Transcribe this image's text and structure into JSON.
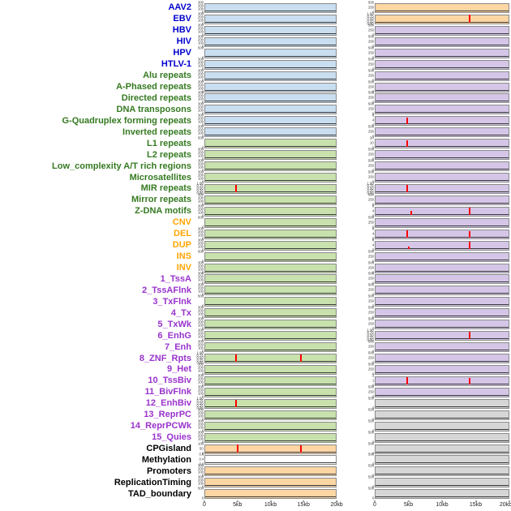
{
  "palette": {
    "label_colors": {
      "virus": "#0000cd",
      "repeat": "#357a21",
      "sv": "#ffa500",
      "chromhmm": "#9933cc",
      "feature": "#000000"
    },
    "panel_colors": {
      "blue": "#c9def0",
      "green": "#c8e1ad",
      "purple": "#d5c6e8",
      "orange": "#fdd6a3",
      "gray": "#d6d6d6",
      "white": "#ffffff"
    },
    "spike_color": "#ff0000",
    "baseline_color": "#3a3a3a"
  },
  "tick_sets": {
    "c4": [
      "300",
      "200",
      "100",
      "0"
    ],
    "c3": [
      "500",
      "250",
      "0"
    ],
    "p5": [
      "1.00",
      "0.75",
      "0.50",
      "0.25",
      "0.00"
    ],
    "s3": [
      "8",
      "4",
      "0"
    ],
    "m3": [
      "0.8",
      "0.4",
      "0.0"
    ],
    "h2": [
      "500",
      "0"
    ],
    "cg": [
      "100",
      "50",
      "0"
    ],
    "t3": [
      "2",
      "1",
      "0"
    ],
    "z3": [
      "20",
      "10",
      "0"
    ]
  },
  "chart_data": {
    "type": "line",
    "subtype": "genomic-feature-tracks",
    "description": "44 genomic feature density tracks over two 20kb regions (left and right panel columns); red vertical spikes mark feature peaks, dark line is the zero baseline",
    "x_ticks": [
      "0",
      "5kb",
      "10kb",
      "15kb",
      "20kb"
    ],
    "x_range_kb": [
      0,
      20
    ],
    "columns": [
      "left-region",
      "right-region"
    ],
    "rows": [
      {
        "label": "AAV2",
        "group": "virus",
        "left": {
          "bg": "blue",
          "yt": "c4",
          "spikes": []
        },
        "right": {
          "bg": "orange",
          "yt": "c3",
          "spikes": []
        }
      },
      {
        "label": "EBV",
        "group": "virus",
        "left": {
          "bg": "blue",
          "yt": "c4",
          "spikes": []
        },
        "right": {
          "bg": "orange",
          "yt": "p5",
          "spikes": [
            [
              0.71,
              1.0
            ]
          ]
        }
      },
      {
        "label": "HBV",
        "group": "virus",
        "left": {
          "bg": "blue",
          "yt": "c4",
          "spikes": []
        },
        "right": {
          "bg": "purple",
          "yt": "c3",
          "spikes": []
        }
      },
      {
        "label": "HIV",
        "group": "virus",
        "left": {
          "bg": "blue",
          "yt": "c4",
          "spikes": []
        },
        "right": {
          "bg": "purple",
          "yt": "c3",
          "spikes": []
        }
      },
      {
        "label": "HPV",
        "group": "virus",
        "left": {
          "bg": "blue",
          "yt": "h2",
          "spikes": []
        },
        "right": {
          "bg": "purple",
          "yt": "c3",
          "spikes": []
        }
      },
      {
        "label": "HTLV-1",
        "group": "virus",
        "left": {
          "bg": "blue",
          "yt": "c4",
          "spikes": []
        },
        "right": {
          "bg": "purple",
          "yt": "c3",
          "spikes": []
        }
      },
      {
        "label": "Alu repeats",
        "group": "repeat",
        "left": {
          "bg": "blue",
          "yt": "c4",
          "spikes": []
        },
        "right": {
          "bg": "purple",
          "yt": "c3",
          "spikes": []
        }
      },
      {
        "label": "A-Phased repeats",
        "group": "repeat",
        "left": {
          "bg": "blue",
          "yt": "c4",
          "spikes": []
        },
        "right": {
          "bg": "purple",
          "yt": "c3",
          "spikes": []
        }
      },
      {
        "label": "Directed repeats",
        "group": "repeat",
        "left": {
          "bg": "blue",
          "yt": "c4",
          "spikes": []
        },
        "right": {
          "bg": "purple",
          "yt": "c3",
          "spikes": []
        }
      },
      {
        "label": "DNA transposons",
        "group": "repeat",
        "left": {
          "bg": "blue",
          "yt": "c4",
          "spikes": []
        },
        "right": {
          "bg": "purple",
          "yt": "c3",
          "spikes": []
        }
      },
      {
        "label": "G-Quadruplex forming repeats",
        "group": "repeat",
        "left": {
          "bg": "blue",
          "yt": "c4",
          "spikes": []
        },
        "right": {
          "bg": "purple",
          "yt": "s3",
          "spikes": [
            [
              0.235,
              0.85
            ]
          ]
        }
      },
      {
        "label": "Inverted repeats",
        "group": "repeat",
        "left": {
          "bg": "blue",
          "yt": "c4",
          "spikes": []
        },
        "right": {
          "bg": "purple",
          "yt": "c3",
          "spikes": []
        }
      },
      {
        "label": "L1 repeats",
        "group": "repeat",
        "left": {
          "bg": "green",
          "yt": "h2",
          "spikes": []
        },
        "right": {
          "bg": "purple",
          "yt": "z3",
          "spikes": [
            [
              0.235,
              0.8
            ]
          ]
        }
      },
      {
        "label": "L2 repeats",
        "group": "repeat",
        "left": {
          "bg": "green",
          "yt": "c4",
          "spikes": []
        },
        "right": {
          "bg": "purple",
          "yt": "c3",
          "spikes": []
        }
      },
      {
        "label": "Low_complexity A/T rich regions",
        "group": "repeat",
        "left": {
          "bg": "green",
          "yt": "c4",
          "spikes": []
        },
        "right": {
          "bg": "purple",
          "yt": "c3",
          "spikes": []
        }
      },
      {
        "label": "Microsatellites",
        "group": "repeat",
        "left": {
          "bg": "green",
          "yt": "c4",
          "spikes": []
        },
        "right": {
          "bg": "purple",
          "yt": "c3",
          "spikes": []
        }
      },
      {
        "label": "MIR repeats",
        "group": "repeat",
        "left": {
          "bg": "green",
          "yt": "p5",
          "spikes": [
            [
              0.235,
              0.92
            ]
          ]
        },
        "right": {
          "bg": "purple",
          "yt": "p5",
          "spikes": [
            [
              0.24,
              0.88
            ]
          ]
        }
      },
      {
        "label": "Mirror repeats",
        "group": "repeat",
        "left": {
          "bg": "green",
          "yt": "c4",
          "spikes": []
        },
        "right": {
          "bg": "purple",
          "yt": "c3",
          "spikes": []
        }
      },
      {
        "label": "Z-DNA motifs",
        "group": "repeat",
        "left": {
          "bg": "green",
          "yt": "c4",
          "spikes": []
        },
        "right": {
          "bg": "purple",
          "yt": "s3",
          "spikes": [
            [
              0.27,
              0.5
            ],
            [
              0.71,
              0.9
            ]
          ]
        }
      },
      {
        "label": "CNV",
        "group": "sv",
        "left": {
          "bg": "green",
          "yt": "h2",
          "spikes": []
        },
        "right": {
          "bg": "purple",
          "yt": "c3",
          "spikes": []
        }
      },
      {
        "label": "DEL",
        "group": "sv",
        "left": {
          "bg": "green",
          "yt": "c4",
          "spikes": []
        },
        "right": {
          "bg": "purple",
          "yt": "s3",
          "spikes": [
            [
              0.24,
              0.88
            ],
            [
              0.71,
              0.8
            ]
          ]
        }
      },
      {
        "label": "DUP",
        "group": "sv",
        "left": {
          "bg": "green",
          "yt": "c4",
          "spikes": []
        },
        "right": {
          "bg": "purple",
          "yt": "s3",
          "spikes": [
            [
              0.25,
              0.25
            ],
            [
              0.71,
              0.85
            ]
          ]
        }
      },
      {
        "label": "INS",
        "group": "sv",
        "left": {
          "bg": "green",
          "yt": "h2",
          "spikes": []
        },
        "right": {
          "bg": "purple",
          "yt": "c3",
          "spikes": []
        }
      },
      {
        "label": "INV",
        "group": "sv",
        "left": {
          "bg": "green",
          "yt": "c4",
          "spikes": []
        },
        "right": {
          "bg": "purple",
          "yt": "c3",
          "spikes": []
        }
      },
      {
        "label": "1_TssA",
        "group": "chromhmm",
        "left": {
          "bg": "green",
          "yt": "c4",
          "spikes": []
        },
        "right": {
          "bg": "purple",
          "yt": "c3",
          "spikes": []
        }
      },
      {
        "label": "2_TssAFlnk",
        "group": "chromhmm",
        "left": {
          "bg": "green",
          "yt": "c4",
          "spikes": []
        },
        "right": {
          "bg": "purple",
          "yt": "c3",
          "spikes": []
        }
      },
      {
        "label": "3_TxFlnk",
        "group": "chromhmm",
        "left": {
          "bg": "green",
          "yt": "h2",
          "spikes": []
        },
        "right": {
          "bg": "purple",
          "yt": "c3",
          "spikes": []
        }
      },
      {
        "label": "4_Tx",
        "group": "chromhmm",
        "left": {
          "bg": "green",
          "yt": "c4",
          "spikes": []
        },
        "right": {
          "bg": "purple",
          "yt": "c3",
          "spikes": []
        }
      },
      {
        "label": "5_TxWk",
        "group": "chromhmm",
        "left": {
          "bg": "green",
          "yt": "c4",
          "spikes": []
        },
        "right": {
          "bg": "purple",
          "yt": "c3",
          "spikes": []
        }
      },
      {
        "label": "6_EnhG",
        "group": "chromhmm",
        "left": {
          "bg": "green",
          "yt": "c4",
          "spikes": []
        },
        "right": {
          "bg": "purple",
          "yt": "p5",
          "spikes": [
            [
              0.71,
              0.88
            ]
          ]
        }
      },
      {
        "label": "7_Enh",
        "group": "chromhmm",
        "left": {
          "bg": "green",
          "yt": "c4",
          "spikes": []
        },
        "right": {
          "bg": "purple",
          "yt": "c3",
          "spikes": []
        }
      },
      {
        "label": "8_ZNF_Rpts",
        "group": "chromhmm",
        "left": {
          "bg": "green",
          "yt": "p5",
          "spikes": [
            [
              0.235,
              0.92
            ],
            [
              0.73,
              0.88
            ]
          ]
        },
        "right": {
          "bg": "purple",
          "yt": "c3",
          "spikes": []
        }
      },
      {
        "label": "9_Het",
        "group": "chromhmm",
        "left": {
          "bg": "green",
          "yt": "c4",
          "spikes": []
        },
        "right": {
          "bg": "purple",
          "yt": "c3",
          "spikes": []
        }
      },
      {
        "label": "10_TssBiv",
        "group": "chromhmm",
        "left": {
          "bg": "green",
          "yt": "c4",
          "spikes": []
        },
        "right": {
          "bg": "purple",
          "yt": "t3",
          "spikes": [
            [
              0.24,
              0.9
            ],
            [
              0.71,
              0.75
            ]
          ]
        }
      },
      {
        "label": "11_BivFlnk",
        "group": "chromhmm",
        "left": {
          "bg": "green",
          "yt": "c4",
          "spikes": []
        },
        "right": {
          "bg": "purple",
          "yt": "c3",
          "spikes": []
        }
      },
      {
        "label": "12_EnhBiv",
        "group": "chromhmm",
        "left": {
          "bg": "green",
          "yt": "p5",
          "spikes": [
            [
              0.235,
              0.88
            ]
          ]
        },
        "right": {
          "bg": "gray",
          "yt": "h2",
          "spikes": []
        }
      },
      {
        "label": "13_ReprPC",
        "group": "chromhmm",
        "left": {
          "bg": "green",
          "yt": "c4",
          "spikes": []
        },
        "right": {
          "bg": "gray",
          "yt": "h2",
          "spikes": []
        }
      },
      {
        "label": "14_ReprPCWk",
        "group": "chromhmm",
        "left": {
          "bg": "green",
          "yt": "c4",
          "spikes": []
        },
        "right": {
          "bg": "gray",
          "yt": "h2",
          "spikes": []
        }
      },
      {
        "label": "15_Quies",
        "group": "chromhmm",
        "left": {
          "bg": "green",
          "yt": "c4",
          "spikes": []
        },
        "right": {
          "bg": "gray",
          "yt": "h2",
          "spikes": []
        }
      },
      {
        "label": "CPGisland",
        "group": "feature",
        "left": {
          "bg": "orange",
          "yt": "cg",
          "spikes": [
            [
              0.25,
              0.92
            ],
            [
              0.73,
              0.85
            ]
          ]
        },
        "right": {
          "bg": "gray",
          "yt": "h2",
          "spikes": []
        }
      },
      {
        "label": "Methylation",
        "group": "feature",
        "left": {
          "bg": "white",
          "yt": "m3",
          "spikes": []
        },
        "right": {
          "bg": "gray",
          "yt": "h2",
          "spikes": []
        }
      },
      {
        "label": "Promoters",
        "group": "feature",
        "left": {
          "bg": "orange",
          "yt": "c4",
          "spikes": []
        },
        "right": {
          "bg": "gray",
          "yt": "h2",
          "spikes": []
        }
      },
      {
        "label": "ReplicationTiming",
        "group": "feature",
        "left": {
          "bg": "orange",
          "yt": "c4",
          "spikes": []
        },
        "right": {
          "bg": "gray",
          "yt": "h2",
          "spikes": []
        }
      },
      {
        "label": "TAD_boundary",
        "group": "feature",
        "left": {
          "bg": "orange",
          "yt": "h2",
          "spikes": []
        },
        "right": {
          "bg": "gray",
          "yt": "h2",
          "spikes": []
        }
      }
    ]
  }
}
